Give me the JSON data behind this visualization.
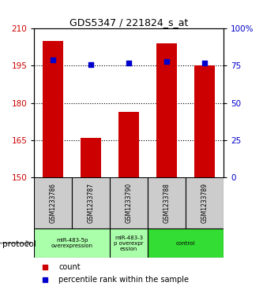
{
  "title": "GDS5347 / 221824_s_at",
  "samples": [
    "GSM1233786",
    "GSM1233787",
    "GSM1233790",
    "GSM1233788",
    "GSM1233789"
  ],
  "bar_values": [
    205.0,
    166.0,
    176.5,
    204.0,
    195.0
  ],
  "percentile_values": [
    79,
    76,
    77,
    78,
    77
  ],
  "bar_color": "#cc0000",
  "dot_color": "#0000cc",
  "ylim_left": [
    150,
    210
  ],
  "yticks_left": [
    150,
    165,
    180,
    195,
    210
  ],
  "ylim_right": [
    0,
    100
  ],
  "yticks_right": [
    0,
    25,
    50,
    75,
    100
  ],
  "ytick_labels_right": [
    "0",
    "25",
    "50",
    "75",
    "100%"
  ],
  "groups": [
    {
      "label": "miR-483-5p\noverexpression",
      "start": 0,
      "end": 2,
      "color": "#aaffaa"
    },
    {
      "label": "miR-483-3\np overexpr\nession",
      "start": 2,
      "end": 3,
      "color": "#aaffaa"
    },
    {
      "label": "control",
      "start": 3,
      "end": 5,
      "color": "#33dd33"
    }
  ],
  "protocol_label": "protocol",
  "legend_count_label": "count",
  "legend_percentile_label": "percentile rank within the sample",
  "bar_width": 0.55,
  "axis_label_color_left": "#cc0000",
  "axis_label_color_right": "#0000cc",
  "background_sample_box": "#cccccc",
  "group_border_color": "#000000"
}
